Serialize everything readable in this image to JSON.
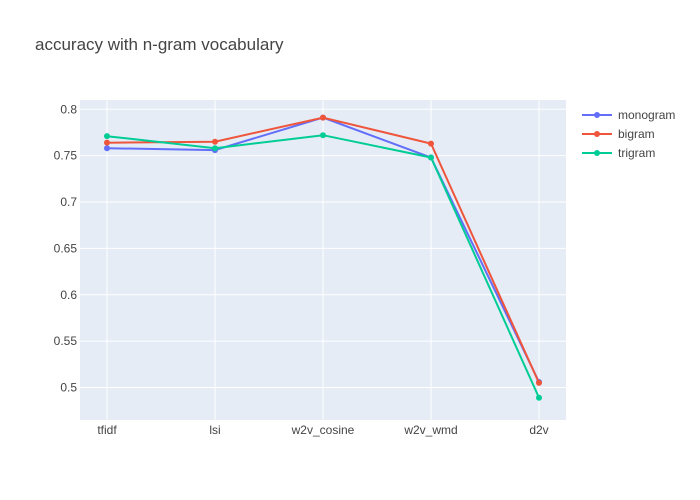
{
  "chart_data": {
    "type": "line",
    "title": "accuracy with n-gram vocabulary",
    "xlabel": "",
    "ylabel": "",
    "categories": [
      "tfidf",
      "lsi",
      "w2v_cosine",
      "w2v_wmd",
      "d2v"
    ],
    "ylim": [
      0.465,
      0.81
    ],
    "yticks": [
      "0.5",
      "0.55",
      "0.6",
      "0.65",
      "0.7",
      "0.75",
      "0.8"
    ],
    "grid": true,
    "legend_position": "top-right",
    "background": "#e5ecf6",
    "series": [
      {
        "name": "monogram",
        "color": "#636efa",
        "values": [
          0.758,
          0.756,
          0.791,
          0.748,
          0.506
        ]
      },
      {
        "name": "bigram",
        "color": "#ef553b",
        "values": [
          0.764,
          0.765,
          0.791,
          0.763,
          0.505
        ]
      },
      {
        "name": "trigram",
        "color": "#00cc96",
        "values": [
          0.771,
          0.758,
          0.772,
          0.748,
          0.489
        ]
      }
    ]
  }
}
